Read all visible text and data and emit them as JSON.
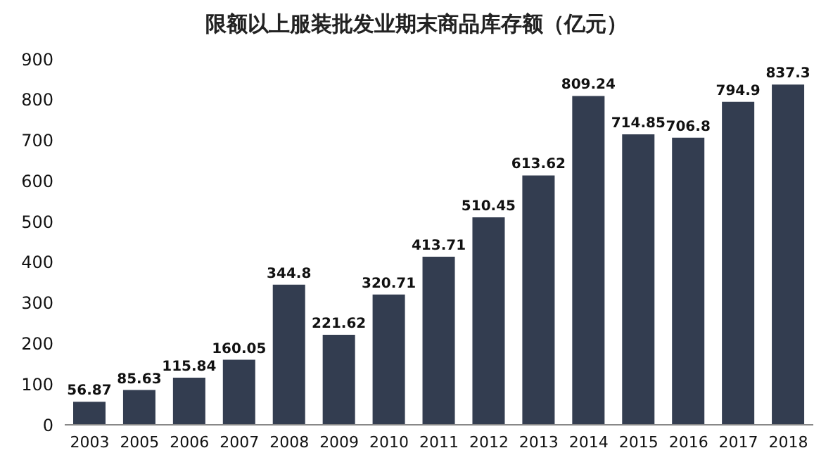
{
  "chart_data": {
    "type": "bar",
    "title": "限额以上服装批发业期末商品库存额（亿元）",
    "categories": [
      "2003",
      "2005",
      "2006",
      "2007",
      "2008",
      "2009",
      "2010",
      "2011",
      "2012",
      "2013",
      "2014",
      "2015",
      "2016",
      "2017",
      "2018"
    ],
    "values": [
      56.87,
      85.63,
      115.84,
      160.05,
      344.8,
      221.62,
      320.71,
      413.71,
      510.45,
      613.62,
      809.24,
      714.85,
      706.8,
      794.9,
      837.3
    ],
    "color": "#333d50",
    "ylim": [
      0,
      900
    ],
    "yticks": [
      0,
      100,
      200,
      300,
      400,
      500,
      600,
      700,
      800,
      900
    ],
    "data_labels": true
  }
}
